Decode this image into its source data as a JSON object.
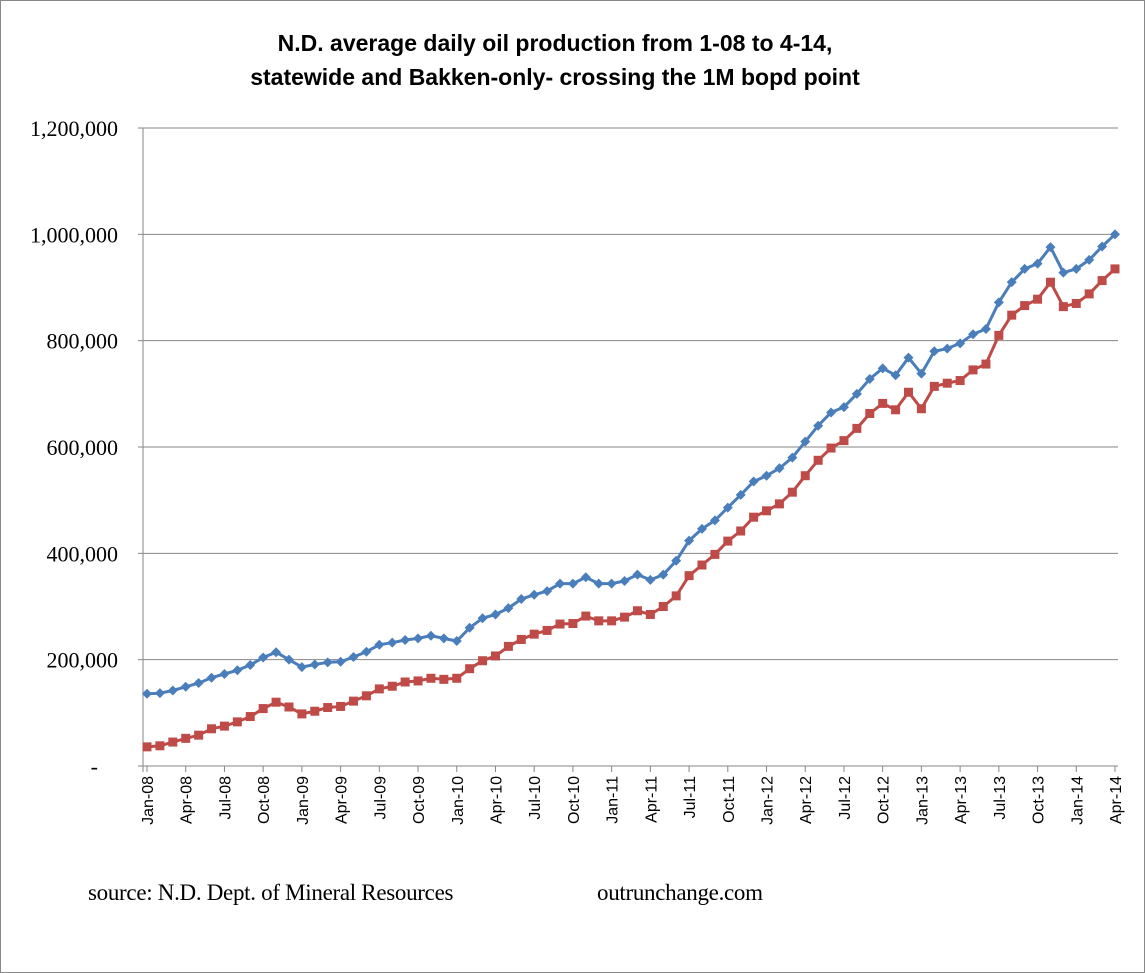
{
  "chart_data": {
    "type": "line",
    "title": "N.D. average daily oil production from 1-08 to 4-14,",
    "subtitle": "statewide and Bakken-only- crossing the 1M bopd point",
    "xlabel": "",
    "ylabel": "",
    "ylim": [
      0,
      1200000
    ],
    "yticks": [
      0,
      200000,
      400000,
      600000,
      800000,
      1000000,
      1200000
    ],
    "ytick_labels": [
      "-",
      "200,000",
      "400,000",
      "600,000",
      "800,000",
      "1,000,000",
      "1,200,000"
    ],
    "grid": "horizontal",
    "legend": "none",
    "x": [
      "Jan-08",
      "Feb-08",
      "Mar-08",
      "Apr-08",
      "May-08",
      "Jun-08",
      "Jul-08",
      "Aug-08",
      "Sep-08",
      "Oct-08",
      "Nov-08",
      "Dec-08",
      "Jan-09",
      "Feb-09",
      "Mar-09",
      "Apr-09",
      "May-09",
      "Jun-09",
      "Jul-09",
      "Aug-09",
      "Sep-09",
      "Oct-09",
      "Nov-09",
      "Dec-09",
      "Jan-10",
      "Feb-10",
      "Mar-10",
      "Apr-10",
      "May-10",
      "Jun-10",
      "Jul-10",
      "Aug-10",
      "Sep-10",
      "Oct-10",
      "Nov-10",
      "Dec-10",
      "Jan-11",
      "Feb-11",
      "Mar-11",
      "Apr-11",
      "May-11",
      "Jun-11",
      "Jul-11",
      "Aug-11",
      "Sep-11",
      "Oct-11",
      "Nov-11",
      "Dec-11",
      "Jan-12",
      "Feb-12",
      "Mar-12",
      "Apr-12",
      "May-12",
      "Jun-12",
      "Jul-12",
      "Aug-12",
      "Sep-12",
      "Oct-12",
      "Nov-12",
      "Dec-12",
      "Jan-13",
      "Feb-13",
      "Mar-13",
      "Apr-13",
      "May-13",
      "Jun-13",
      "Jul-13",
      "Aug-13",
      "Sep-13",
      "Oct-13",
      "Nov-13",
      "Dec-13",
      "Jan-14",
      "Feb-14",
      "Mar-14",
      "Apr-14"
    ],
    "xtick_labels": [
      "Jan-08",
      "Apr-08",
      "Jul-08",
      "Oct-08",
      "Jan-09",
      "Apr-09",
      "Jul-09",
      "Oct-09",
      "Jan-10",
      "Apr-10",
      "Jul-10",
      "Oct-10",
      "Jan-11",
      "Apr-11",
      "Jul-11",
      "Oct-11",
      "Jan-12",
      "Apr-12",
      "Jul-12",
      "Oct-12",
      "Jan-13",
      "Apr-13",
      "Jul-13",
      "Oct-13",
      "Jan-14",
      "Apr-14"
    ],
    "series": [
      {
        "name": "Statewide",
        "color": "#4a7ebb",
        "marker": "diamond",
        "values": [
          136000,
          137000,
          142000,
          149000,
          156000,
          166000,
          173000,
          180000,
          190000,
          204000,
          214000,
          200000,
          186000,
          191000,
          195000,
          196000,
          205000,
          215000,
          228000,
          232000,
          237000,
          240000,
          245000,
          240000,
          235000,
          260000,
          278000,
          285000,
          297000,
          314000,
          322000,
          329000,
          343000,
          343000,
          355000,
          343000,
          343000,
          348000,
          360000,
          350000,
          360000,
          386000,
          424000,
          446000,
          462000,
          486000,
          510000,
          535000,
          546000,
          560000,
          580000,
          610000,
          640000,
          665000,
          675000,
          700000,
          728000,
          748000,
          735000,
          768000,
          738000,
          780000,
          785000,
          795000,
          812000,
          822000,
          872000,
          910000,
          935000,
          945000,
          976000,
          928000,
          935000,
          952000,
          977000,
          1000000
        ]
      },
      {
        "name": "Bakken-only",
        "color": "#be4b48",
        "marker": "square",
        "values": [
          36000,
          38000,
          45000,
          52000,
          58000,
          70000,
          75000,
          83000,
          93000,
          108000,
          120000,
          111000,
          98000,
          103000,
          110000,
          112000,
          122000,
          132000,
          145000,
          150000,
          158000,
          160000,
          165000,
          163000,
          165000,
          183000,
          198000,
          207000,
          225000,
          238000,
          248000,
          255000,
          267000,
          268000,
          282000,
          273000,
          273000,
          280000,
          292000,
          285000,
          300000,
          320000,
          358000,
          378000,
          398000,
          423000,
          442000,
          468000,
          480000,
          493000,
          515000,
          546000,
          575000,
          598000,
          612000,
          635000,
          663000,
          682000,
          670000,
          703000,
          672000,
          714000,
          720000,
          725000,
          745000,
          756000,
          810000,
          848000,
          866000,
          878000,
          910000,
          864000,
          870000,
          888000,
          913000,
          935000
        ]
      }
    ]
  },
  "footer": {
    "source": "source: N.D. Dept. of Mineral Resources",
    "site": "outrunchange.com"
  }
}
